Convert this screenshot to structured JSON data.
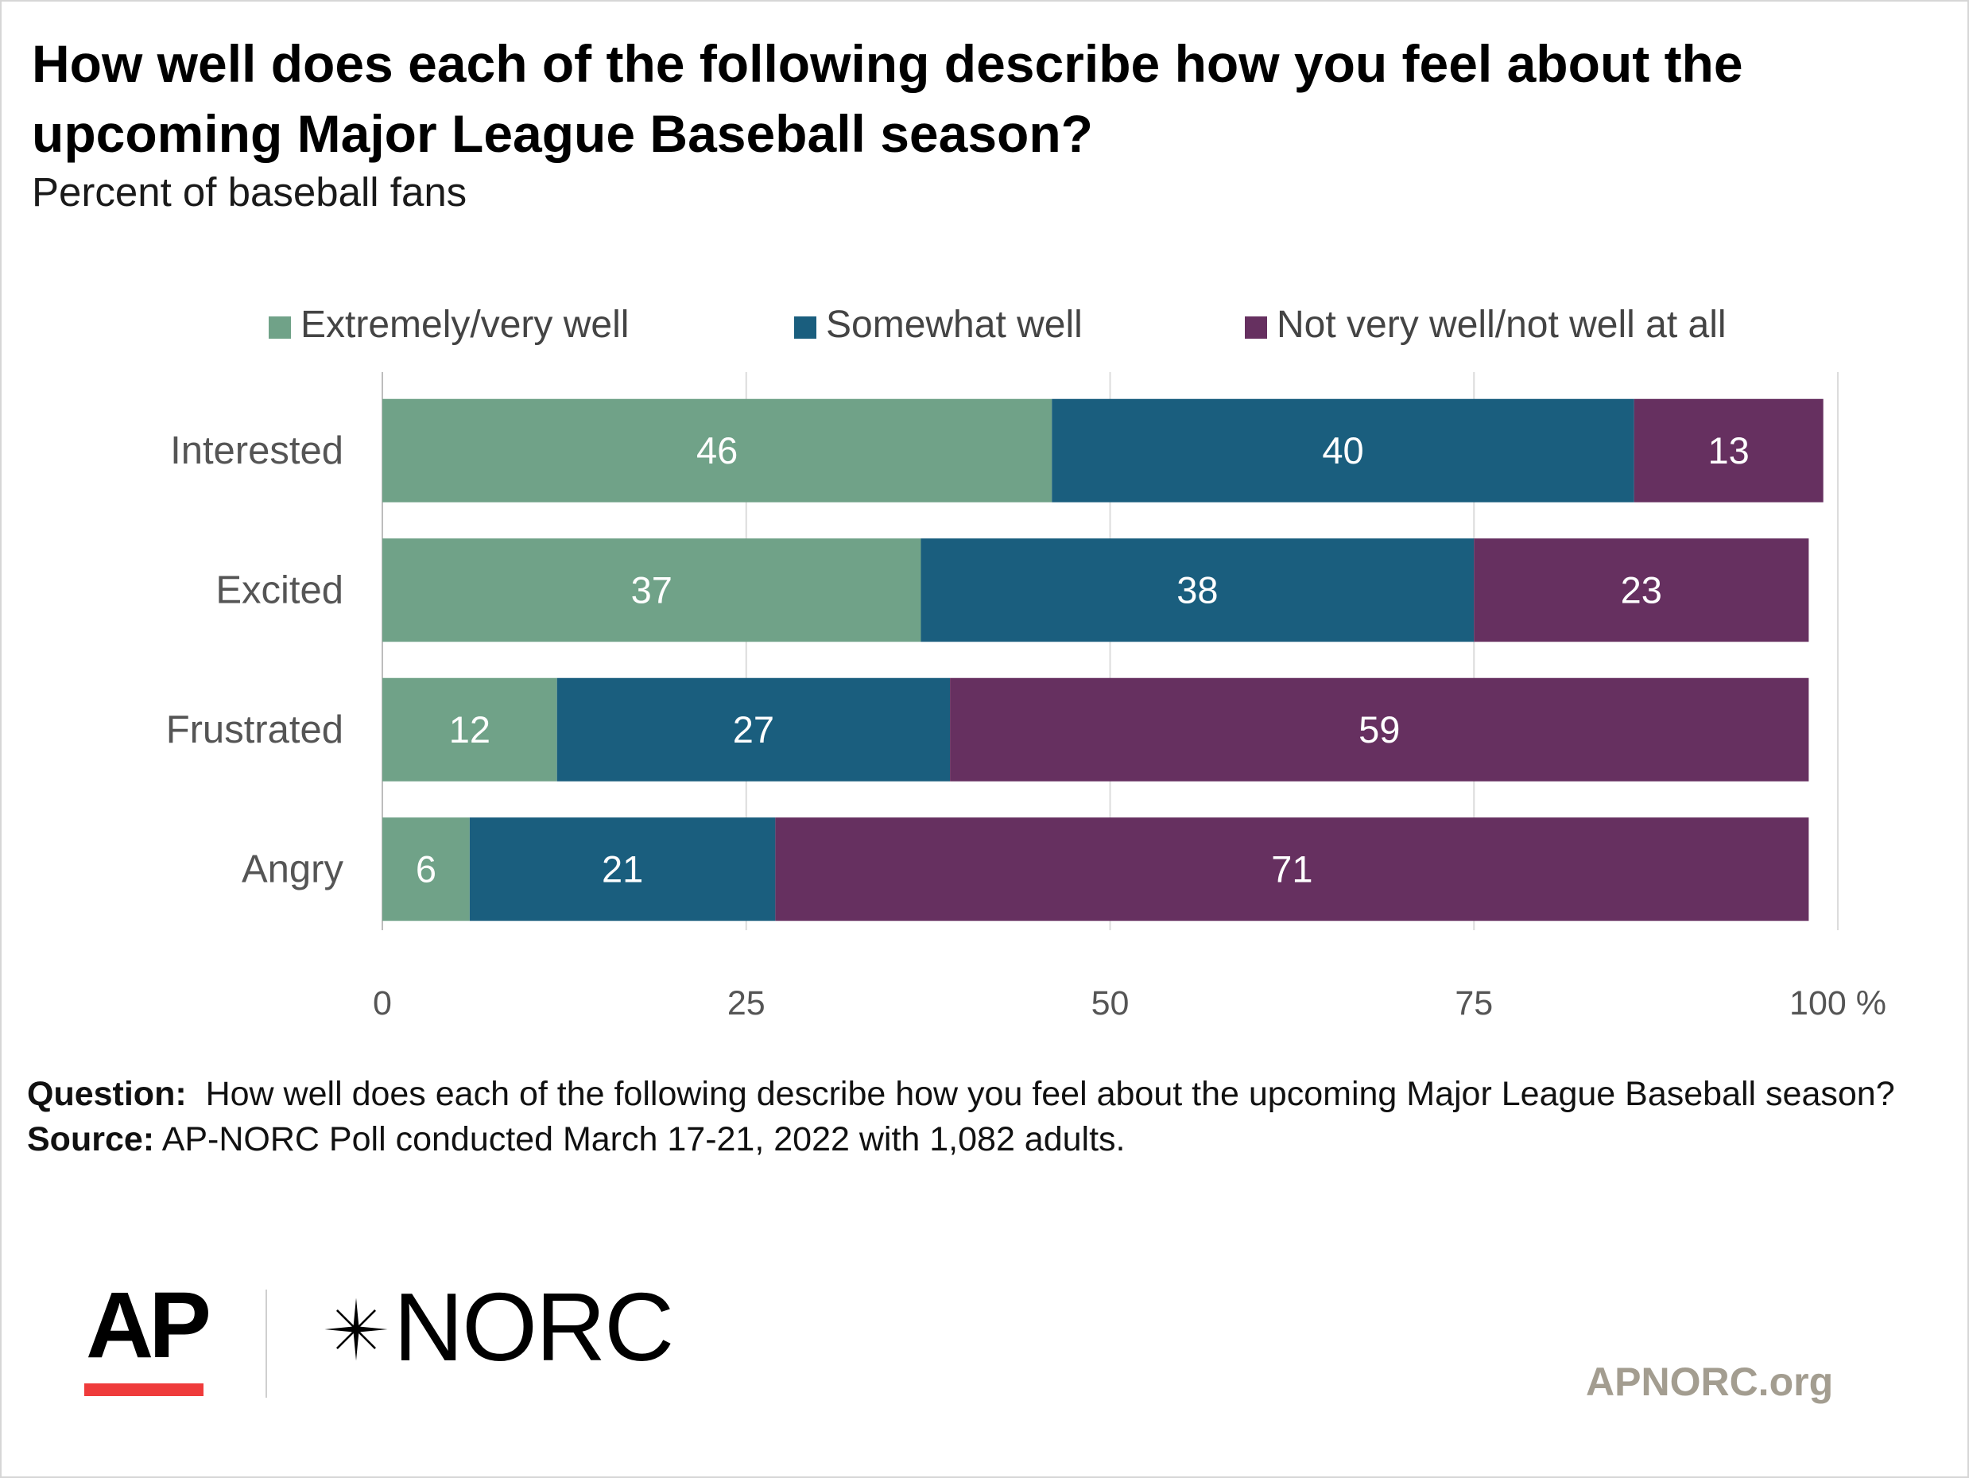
{
  "title": "How well does each of the following describe how you feel about the upcoming Major League Baseball season?",
  "subtitle": "Percent of baseball fans",
  "chart_data": {
    "type": "bar",
    "orientation": "horizontal",
    "stacked": true,
    "categories": [
      "Interested",
      "Excited",
      "Frustrated",
      "Angry"
    ],
    "series": [
      {
        "name": "Extremely/very well",
        "color": "#70a288",
        "values": [
          46,
          37,
          12,
          6
        ]
      },
      {
        "name": "Somewhat well",
        "color": "#1a5e7e",
        "values": [
          40,
          38,
          27,
          21
        ]
      },
      {
        "name": "Not very well/not well at all",
        "color": "#663060",
        "values": [
          13,
          23,
          59,
          71
        ]
      }
    ],
    "xlim": [
      0,
      100
    ],
    "x_ticks": [
      0,
      25,
      50,
      75,
      100
    ],
    "x_unit": "%",
    "grid": true,
    "legend_position": "top",
    "data_label_color": "#ffffff"
  },
  "footnote": {
    "question_label": "Question:",
    "question_text": "How well does each of the following describe how you feel about the upcoming Major League Baseball season?",
    "source_label": "Source:",
    "source_text": "AP-NORC Poll conducted March 17-21, 2022 with 1,082 adults."
  },
  "logos": {
    "ap": "AP",
    "norc": "NORC",
    "site": "APNORC.org"
  }
}
